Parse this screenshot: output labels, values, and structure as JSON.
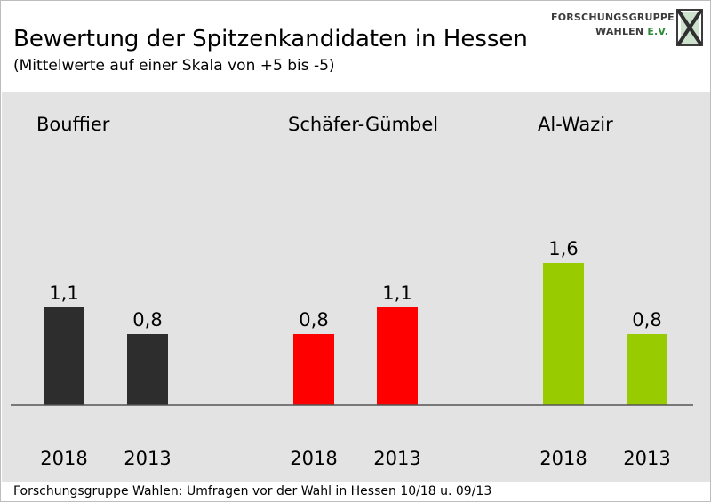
{
  "header": {
    "title": "Bewertung der Spitzenkandidaten in Hessen",
    "subtitle": "(Mittelwerte auf einer Skala von +5 bis -5)"
  },
  "logo": {
    "line1": "FORSCHUNGSGRUPPE",
    "line2": "WAHLEN",
    "line2_suffix": "E.V."
  },
  "footer": {
    "source": "Forschungsgruppe Wahlen: Umfragen vor der Wahl in Hessen 10/18 u. 09/13"
  },
  "chart_data": {
    "type": "bar",
    "title": "Bewertung der Spitzenkandidaten in Hessen",
    "subtitle": "(Mittelwerte auf einer Skala von +5 bis -5)",
    "ylim": [
      0,
      5
    ],
    "grid": false,
    "legend": "none",
    "groups": [
      {
        "name": "Bouffier",
        "color": "#2d2d2d",
        "bars": [
          {
            "category": "2018",
            "value": 1.1,
            "label": "1,1"
          },
          {
            "category": "2013",
            "value": 0.8,
            "label": "0,8"
          }
        ]
      },
      {
        "name": "Schäfer-Gümbel",
        "color": "#ff0000",
        "bars": [
          {
            "category": "2018",
            "value": 0.8,
            "label": "0,8"
          },
          {
            "category": "2013",
            "value": 1.1,
            "label": "1,1"
          }
        ]
      },
      {
        "name": "Al-Wazir",
        "color": "#99cc00",
        "bars": [
          {
            "category": "2018",
            "value": 1.6,
            "label": "1,6"
          },
          {
            "category": "2013",
            "value": 0.8,
            "label": "0,8"
          }
        ]
      }
    ]
  }
}
